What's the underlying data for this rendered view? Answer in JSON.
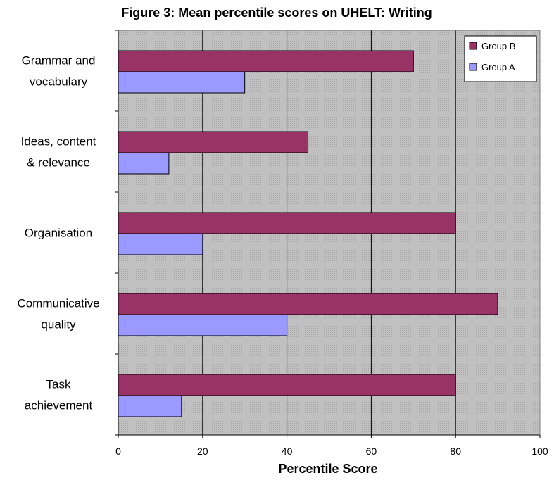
{
  "chart_data": {
    "type": "bar",
    "orientation": "horizontal",
    "title": "Figure 3: Mean percentile scores on UHELT: Writing",
    "xlabel": "Percentile Score",
    "ylabel": "",
    "xlim": [
      0,
      100
    ],
    "x_ticks": [
      "0",
      "20",
      "40",
      "60",
      "80",
      "100"
    ],
    "grid": "vertical gridlines",
    "legend_position": "top-right",
    "plot_background": "#c0c0c0",
    "categories": [
      [
        "Grammar and",
        "vocabulary"
      ],
      [
        "Ideas, content",
        "& relevance"
      ],
      [
        "Organisation"
      ],
      [
        "Communicative",
        "quality"
      ],
      [
        "Task",
        "achievement"
      ]
    ],
    "series": [
      {
        "name": "Group B",
        "color": "#993366",
        "values": [
          70,
          45,
          80,
          90,
          80
        ]
      },
      {
        "name": "Group A",
        "color": "#9999ff",
        "values": [
          30,
          12,
          20,
          40,
          15
        ]
      }
    ]
  }
}
